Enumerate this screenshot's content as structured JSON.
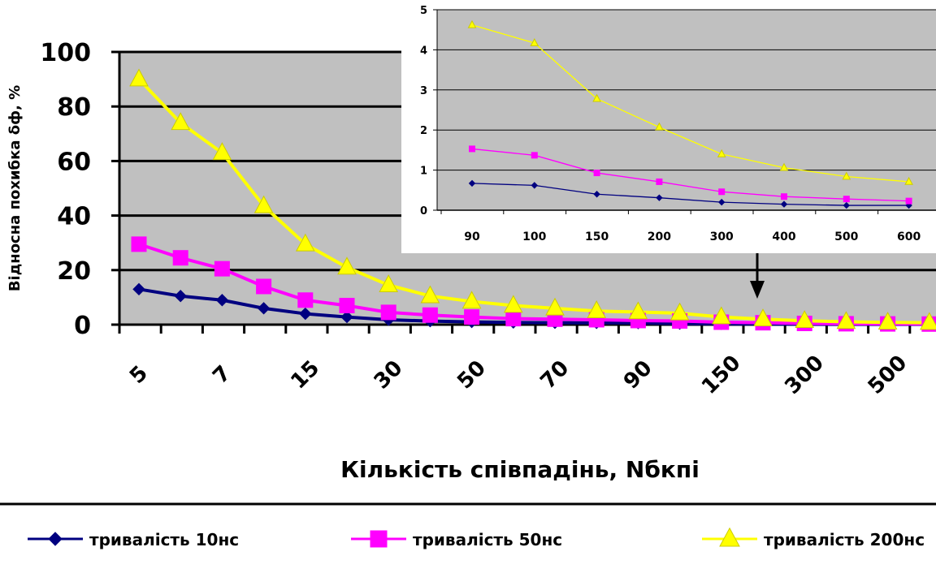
{
  "colors": {
    "s10": "#000080",
    "s50": "#ff00ff",
    "s200": "#ffff00",
    "plot_bg": "#c0c0c0"
  },
  "chart_data": [
    {
      "type": "line",
      "xlabel": "Кількість співпадінь, Nбкпі",
      "ylabel": "Відносна похибка δф, %",
      "ylim": [
        0,
        100
      ],
      "yticks": [
        0,
        20,
        40,
        60,
        80,
        100
      ],
      "x_tick_labels": [
        "5",
        "7",
        "15",
        "30",
        "50",
        "70",
        "90",
        "150",
        "300",
        "500"
      ],
      "grid": true,
      "legend_position": "bottom",
      "series": [
        {
          "name": "тривалість 10нс",
          "marker": "diamond",
          "values": [
            13,
            10.5,
            9,
            6,
            4,
            2.8,
            1.8,
            1.3,
            1.0,
            0.8,
            0.7,
            0.65,
            0.6,
            0.38,
            0.3,
            0.2,
            0.15,
            0.1,
            0.1,
            0.1
          ]
        },
        {
          "name": "тривалість 50нс",
          "marker": "square",
          "values": [
            29.5,
            24.5,
            20.5,
            14,
            9,
            7,
            4.5,
            3.5,
            2.8,
            2.2,
            2.0,
            1.8,
            1.5,
            1.35,
            0.9,
            0.7,
            0.45,
            0.33,
            0.27,
            0.22
          ]
        },
        {
          "name": "тривалість 200нс",
          "marker": "triangle",
          "values": [
            90,
            74,
            63,
            43.5,
            29.5,
            21,
            14.5,
            10.5,
            8.5,
            7,
            6,
            5,
            4.6,
            4.2,
            2.8,
            2.0,
            1.4,
            1.05,
            0.82,
            0.7
          ]
        }
      ]
    },
    {
      "type": "line",
      "categories": [
        "90",
        "100",
        "150",
        "200",
        "300",
        "400",
        "500",
        "600"
      ],
      "ylim": [
        0,
        5
      ],
      "yticks": [
        0,
        1,
        2,
        3,
        4,
        5
      ],
      "grid": true,
      "series": [
        {
          "name": "тривалість 10нс",
          "values": [
            0.67,
            0.62,
            0.4,
            0.31,
            0.2,
            0.15,
            0.12,
            0.12
          ]
        },
        {
          "name": "тривалість 50нс",
          "values": [
            1.53,
            1.37,
            0.93,
            0.71,
            0.46,
            0.34,
            0.28,
            0.23
          ]
        },
        {
          "name": "тривалість 200нс",
          "values": [
            4.62,
            4.17,
            2.78,
            2.07,
            1.4,
            1.06,
            0.84,
            0.71
          ]
        }
      ]
    }
  ]
}
